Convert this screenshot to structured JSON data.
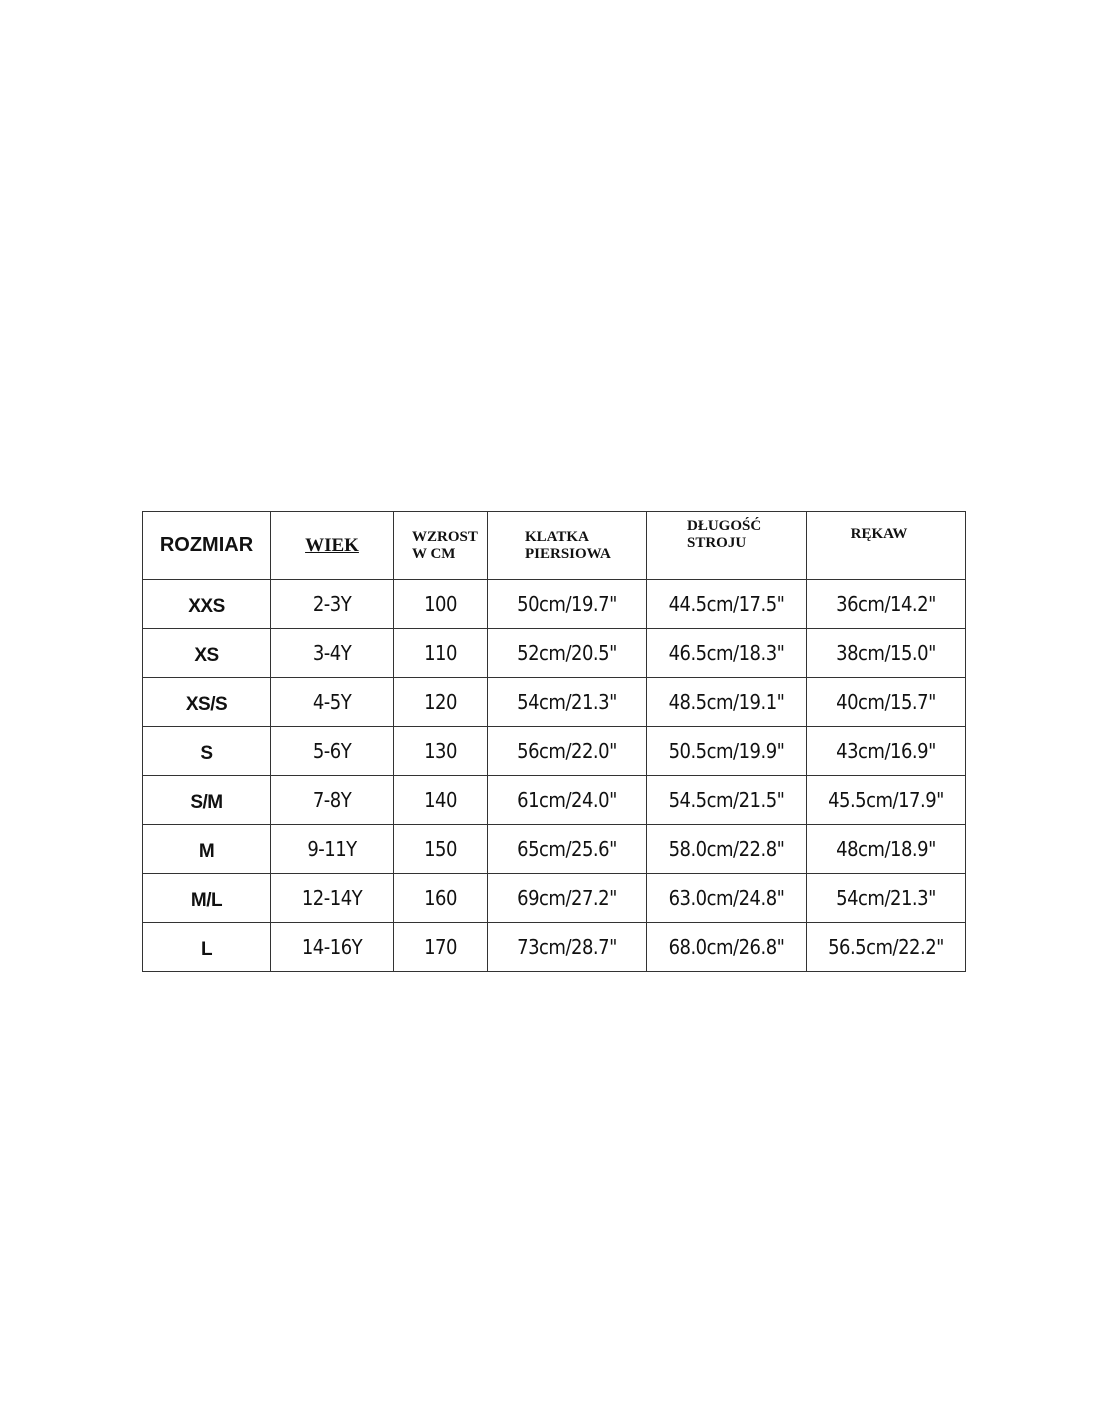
{
  "headers": [
    "ROZMIAR",
    "WIEK",
    "WZROST W CM",
    "KLATKA PIERSIOWA",
    "DŁUGOŚĆ STROJU",
    "RĘKAW"
  ],
  "header_lines": {
    "wzrost": [
      "WZROST",
      "W CM"
    ],
    "klatka": [
      "KLATKA",
      "PIERSIOWA"
    ],
    "dlugosc": [
      "DŁUGOŚĆ",
      "STROJU"
    ]
  },
  "rows": [
    [
      "XXS",
      "2-3Y",
      "100",
      "50cm/19.7\"",
      "44.5cm/17.5\"",
      "36cm/14.2\""
    ],
    [
      "XS",
      "3-4Y",
      "110",
      "52cm/20.5\"",
      "46.5cm/18.3\"",
      "38cm/15.0\""
    ],
    [
      "XS/S",
      "4-5Y",
      "120",
      "54cm/21.3\"",
      "48.5cm/19.1\"",
      "40cm/15.7\""
    ],
    [
      "S",
      "5-6Y",
      "130",
      "56cm/22.0\"",
      "50.5cm/19.9\"",
      "43cm/16.9\""
    ],
    [
      "S/M",
      "7-8Y",
      "140",
      "61cm/24.0\"",
      "54.5cm/21.5\"",
      "45.5cm/17.9\""
    ],
    [
      "M",
      "9-11Y",
      "150",
      "65cm/25.6\"",
      "58.0cm/22.8\"",
      "48cm/18.9\""
    ],
    [
      "M/L",
      "12-14Y",
      "160",
      "69cm/27.2\"",
      "63.0cm/24.8\"",
      "54cm/21.3\""
    ],
    [
      "L",
      "14-16Y",
      "170",
      "73cm/28.7\"",
      "68.0cm/26.8\"",
      "56.5cm/22.2\""
    ]
  ]
}
